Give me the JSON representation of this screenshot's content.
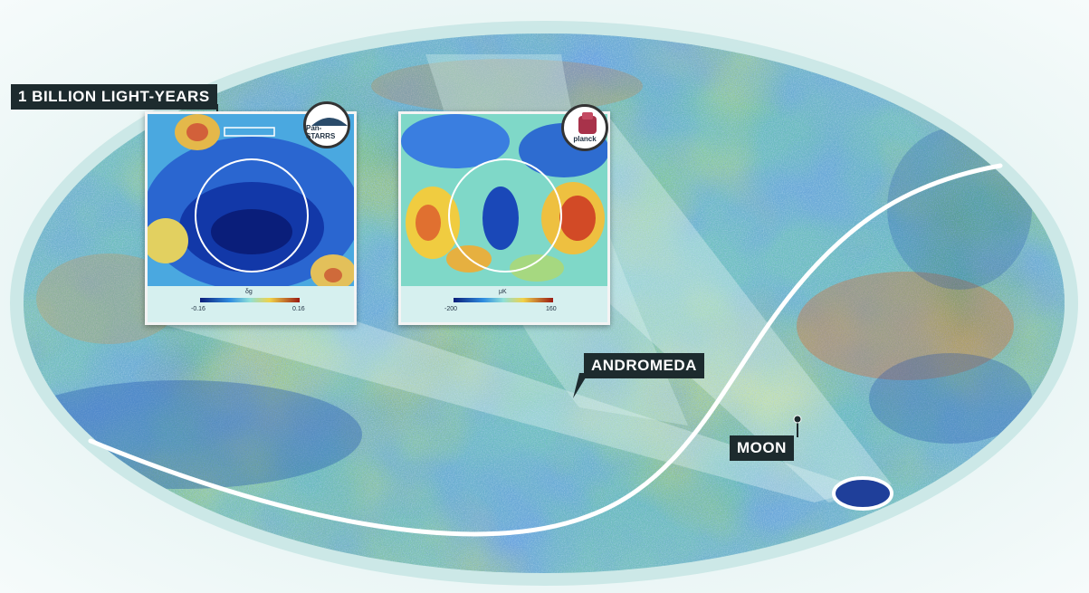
{
  "labels": {
    "scale": "1 BILLION LIGHT-YEARS",
    "andromeda": "ANDROMEDA",
    "moon": "MOON"
  },
  "insets": {
    "panstarrs": {
      "badge": "Pan-STARRS",
      "colorbar_symbol": "δg",
      "min": "-0.16",
      "max": "0.16"
    },
    "planck": {
      "badge": "planck",
      "colorbar_symbol": "μK",
      "min": "-200",
      "max": "160"
    }
  },
  "colors": {
    "cmb_blue": "#2e6fc0",
    "cmb_cyan": "#63c7c9",
    "cmb_yellow": "#e8cf55",
    "cmb_red": "#d85a2b",
    "label_bg": "#1d2b2e"
  }
}
